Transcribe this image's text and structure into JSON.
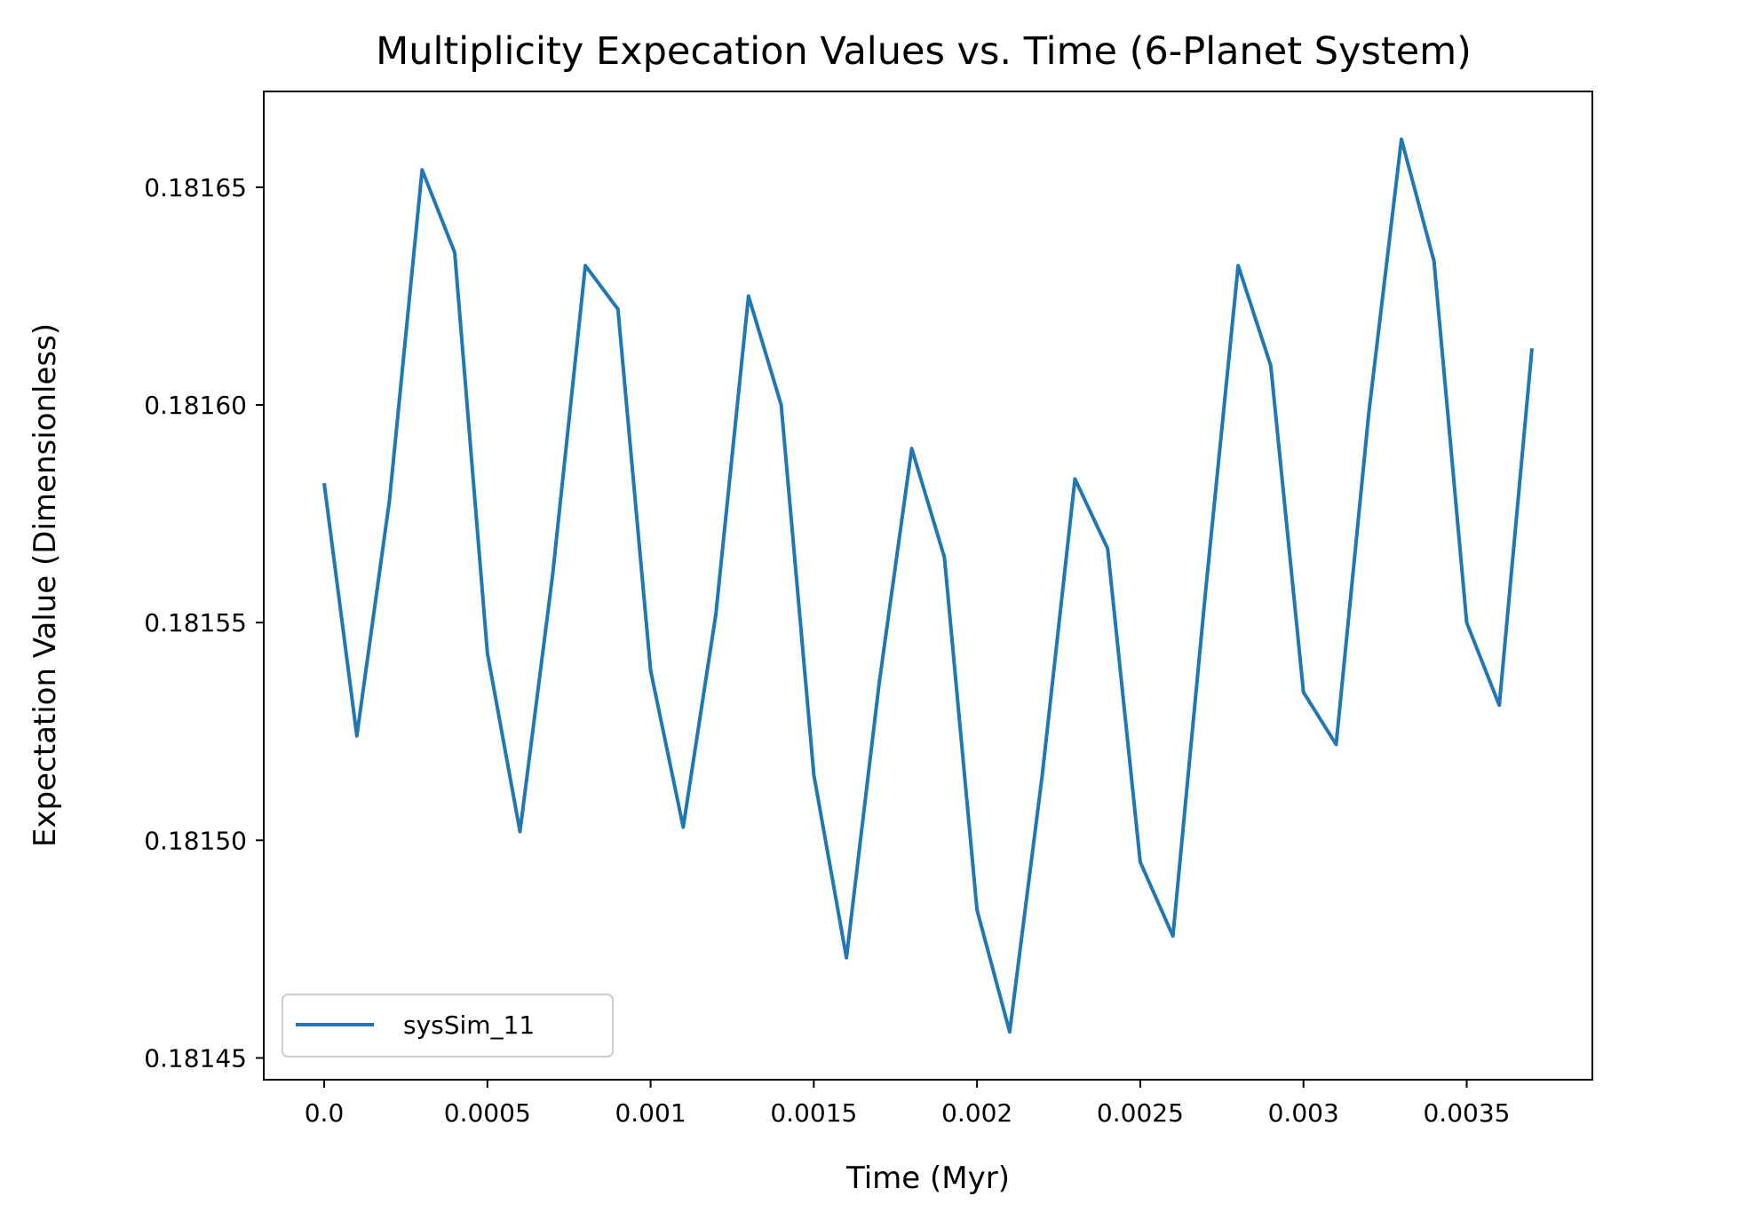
{
  "chart_data": {
    "type": "line",
    "title": "Multiplicity Expecation Values vs. Time (6-Planet System)",
    "xlabel": "Time (Myr)",
    "ylabel": "Expectation Value (Dimensionless)",
    "xlim": [
      -0.000185,
      0.003885
    ],
    "ylim": [
      0.181445,
      0.181672
    ],
    "xticks": [
      {
        "value": 0.0,
        "label": "0.0"
      },
      {
        "value": 0.0005,
        "label": "0.0005"
      },
      {
        "value": 0.001,
        "label": "0.001"
      },
      {
        "value": 0.0015,
        "label": "0.0015"
      },
      {
        "value": 0.002,
        "label": "0.002"
      },
      {
        "value": 0.0025,
        "label": "0.0025"
      },
      {
        "value": 0.003,
        "label": "0.003"
      },
      {
        "value": 0.0035,
        "label": "0.0035"
      }
    ],
    "yticks": [
      {
        "value": 0.18145,
        "label": "0.18145"
      },
      {
        "value": 0.1815,
        "label": "0.18150"
      },
      {
        "value": 0.18155,
        "label": "0.18155"
      },
      {
        "value": 0.1816,
        "label": "0.18160"
      },
      {
        "value": 0.18165,
        "label": "0.18165"
      }
    ],
    "grid": false,
    "legend_position": "lower-left",
    "series": [
      {
        "name": "sysSim_11",
        "color": "#1f77b4",
        "x": [
          0.0,
          0.0001,
          0.0002,
          0.0003,
          0.0004,
          0.0005,
          0.0006,
          0.0007,
          0.0008,
          0.0009,
          0.001,
          0.0011,
          0.0012,
          0.0013,
          0.0014,
          0.0015,
          0.0016,
          0.0017,
          0.0018,
          0.0019,
          0.002,
          0.0021,
          0.0022,
          0.0023,
          0.0024,
          0.0025,
          0.0026,
          0.0027,
          0.0028,
          0.0029,
          0.003,
          0.0031,
          0.0032,
          0.0033,
          0.0034,
          0.0035,
          0.0036,
          0.0037
        ],
        "y": [
          0.181582,
          0.181524,
          0.181578,
          0.181654,
          0.181635,
          0.181543,
          0.181502,
          0.181561,
          0.181632,
          0.181622,
          0.181539,
          0.181503,
          0.181552,
          0.181625,
          0.1816,
          0.181515,
          0.181473,
          0.181536,
          0.18159,
          0.181565,
          0.181484,
          0.181456,
          0.181515,
          0.181583,
          0.181567,
          0.181495,
          0.181478,
          0.181557,
          0.181632,
          0.181609,
          0.181534,
          0.181522,
          0.181598,
          0.181661,
          0.181633,
          0.18155,
          0.181531,
          0.181613
        ]
      }
    ]
  }
}
